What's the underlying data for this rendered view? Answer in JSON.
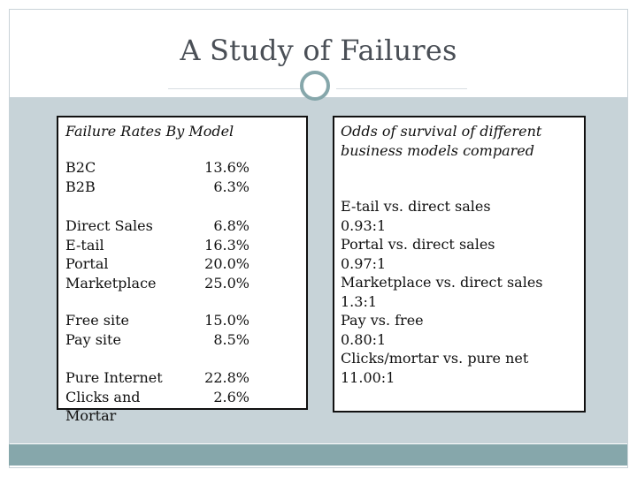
{
  "slide": {
    "title": "A Study of Failures"
  },
  "left_panel": {
    "heading": "Failure Rates By Model",
    "groups": [
      {
        "rows": [
          {
            "label": "B2C",
            "value": "13.6%"
          },
          {
            "label": "B2B",
            "value": "6.3%"
          }
        ]
      },
      {
        "rows": [
          {
            "label": "Direct Sales",
            "value": "6.8%"
          },
          {
            "label": "E-tail",
            "value": "16.3%"
          },
          {
            "label": "Portal",
            "value": "20.0%"
          },
          {
            "label": "Marketplace",
            "value": "25.0%"
          }
        ]
      },
      {
        "rows": [
          {
            "label": "Free site",
            "value": "15.0%"
          },
          {
            "label": "Pay site",
            "value": "8.5%"
          }
        ]
      },
      {
        "rows": [
          {
            "label": "Pure Internet",
            "value": "22.8%"
          },
          {
            "label": "Clicks and Mortar",
            "value": "2.6%"
          }
        ]
      }
    ]
  },
  "right_panel": {
    "heading": "Odds of survival of different business models compared",
    "lines": [
      "E-tail vs. direct sales",
      "0.93:1",
      "Portal vs. direct sales",
      "0.97:1",
      "Marketplace vs. direct sales",
      "1.3:1",
      "Pay vs. free",
      "0.80:1",
      "Clicks/mortar vs. pure net",
      "11.00:1"
    ]
  },
  "colors": {
    "title_text": "#4a4f56",
    "band": "#c7d3d8",
    "footer_band": "#86a7ab",
    "panel_border": "#111111"
  }
}
